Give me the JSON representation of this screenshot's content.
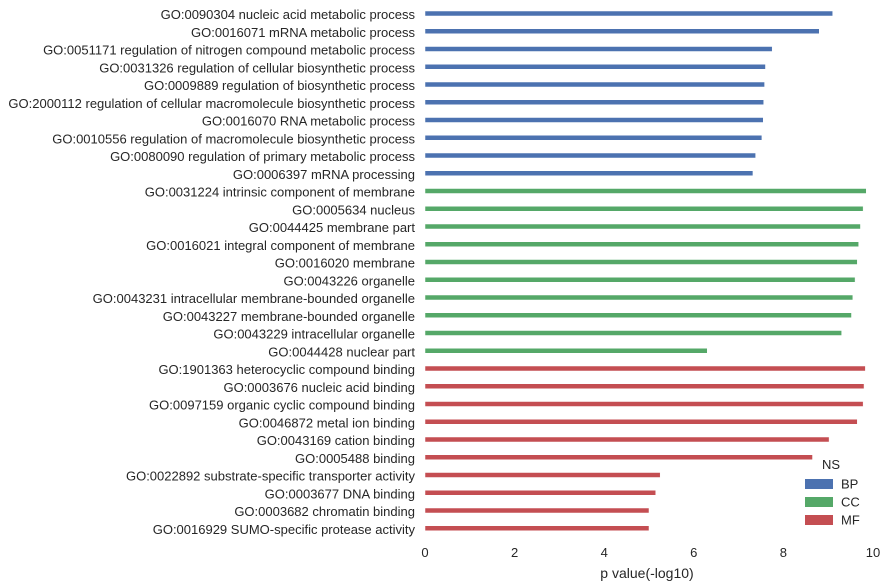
{
  "chart_data": {
    "type": "bar",
    "orientation": "horizontal",
    "xlabel": "p value(-log10)",
    "xlim": [
      0,
      10
    ],
    "xticks": [
      "0",
      "2",
      "4",
      "6",
      "8",
      "10"
    ],
    "grid": false,
    "legend": {
      "title": "NS",
      "placement": "bottom-right",
      "entries": [
        {
          "name": "BP",
          "color": "#4c72b0"
        },
        {
          "name": "CC",
          "color": "#55a868"
        },
        {
          "name": "MF",
          "color": "#c44e52"
        }
      ]
    },
    "categories": [
      "GO:0090304 nucleic acid metabolic process",
      "GO:0016071 mRNA metabolic process",
      "GO:0051171 regulation of nitrogen compound metabolic process",
      "GO:0031326 regulation of cellular biosynthetic process",
      "GO:0009889 regulation of biosynthetic process",
      "GO:2000112 regulation of cellular macromolecule biosynthetic process",
      "GO:0016070 RNA metabolic process",
      "GO:0010556 regulation of macromolecule biosynthetic process",
      "GO:0080090 regulation of primary metabolic process",
      "GO:0006397 mRNA processing",
      "GO:0031224 intrinsic component of membrane",
      "GO:0005634 nucleus",
      "GO:0044425 membrane part",
      "GO:0016021 integral component of membrane",
      "GO:0016020 membrane",
      "GO:0043226 organelle",
      "GO:0043231 intracellular membrane-bounded organelle",
      "GO:0043227 membrane-bounded organelle",
      "GO:0043229 intracellular organelle",
      "GO:0044428 nuclear part",
      "GO:1901363 heterocyclic compound binding",
      "GO:0003676 nucleic acid binding",
      "GO:0097159 organic cyclic compound binding",
      "GO:0046872 metal ion binding",
      "GO:0043169 cation binding",
      "GO:0005488 binding",
      "GO:0022892 substrate-specific transporter activity",
      "GO:0003677 DNA binding",
      "GO:0003682 chromatin binding",
      "GO:0016929 SUMO-specific protease activity"
    ],
    "groups": [
      "BP",
      "BP",
      "BP",
      "BP",
      "BP",
      "BP",
      "BP",
      "BP",
      "BP",
      "BP",
      "CC",
      "CC",
      "CC",
      "CC",
      "CC",
      "CC",
      "CC",
      "CC",
      "CC",
      "CC",
      "MF",
      "MF",
      "MF",
      "MF",
      "MF",
      "MF",
      "MF",
      "MF",
      "MF",
      "MF"
    ],
    "values": [
      9.1,
      8.8,
      7.75,
      7.6,
      7.58,
      7.56,
      7.55,
      7.52,
      7.38,
      7.32,
      9.85,
      9.78,
      9.72,
      9.68,
      9.65,
      9.6,
      9.55,
      9.52,
      9.3,
      6.3,
      9.83,
      9.8,
      9.78,
      9.65,
      9.02,
      8.65,
      5.25,
      5.15,
      5.0,
      5.0
    ]
  }
}
